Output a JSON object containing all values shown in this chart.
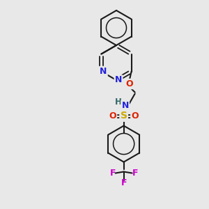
{
  "bg_color": "#e8e8e8",
  "bond_color": "#1a1a1a",
  "figsize": [
    3.0,
    3.0
  ],
  "dpi": 100,
  "colors": {
    "N": "#2222dd",
    "O": "#dd2200",
    "S": "#ccaa00",
    "F": "#cc00cc",
    "H": "#336666",
    "C": "#1a1a1a"
  }
}
